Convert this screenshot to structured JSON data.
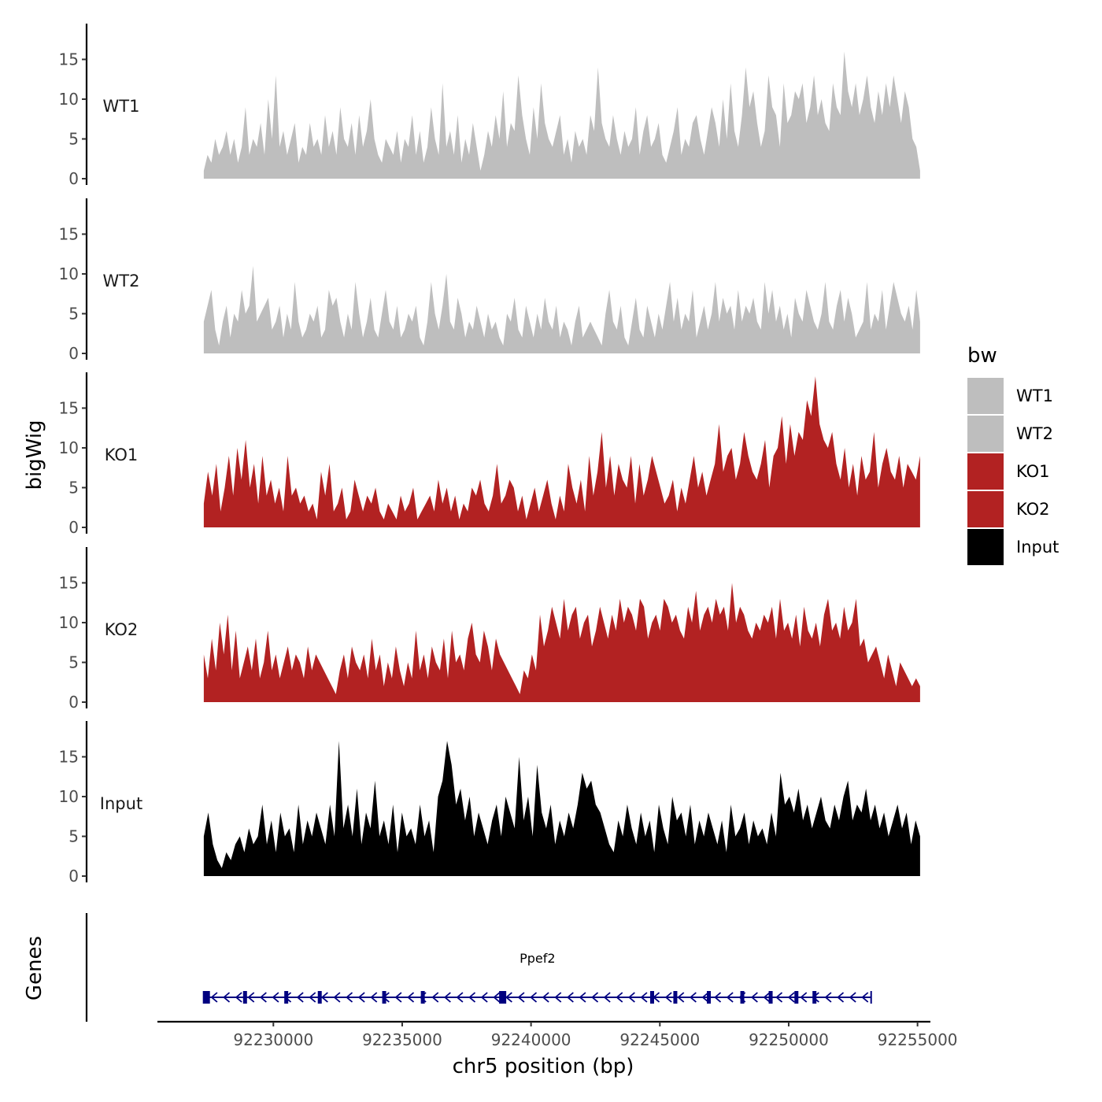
{
  "chart_data": {
    "type": "area",
    "xlabel": "chr5 position (bp)",
    "ylabel": "bigWig",
    "genes_label": "Genes",
    "xlim": [
      92225500,
      92255500
    ],
    "x_ticks": [
      92230000,
      92235000,
      92240000,
      92245000,
      92250000,
      92255000
    ],
    "x_tick_labels": [
      "92230000",
      "92235000",
      "92240000",
      "92245000",
      "92250000",
      "92255000"
    ],
    "ylim": [
      0,
      19.5
    ],
    "y_ticks": [
      0,
      5,
      10,
      15
    ],
    "y_tick_labels": [
      "0",
      "5",
      "10",
      "15"
    ],
    "series_x_start": 92227300,
    "series_x_end": 92255100,
    "legend": {
      "title": "bw",
      "entries": [
        {
          "label": "WT1",
          "color": "#bebebe"
        },
        {
          "label": "WT2",
          "color": "#bebebe"
        },
        {
          "label": "KO1",
          "color": "#b22222"
        },
        {
          "label": "KO2",
          "color": "#b22222"
        },
        {
          "label": "Input",
          "color": "#000000"
        }
      ]
    },
    "tracks": [
      {
        "name": "WT1",
        "color": "#bebebe",
        "values": [
          1,
          3,
          2,
          5,
          3,
          4,
          6,
          3,
          5,
          2,
          4,
          9,
          3,
          5,
          4,
          7,
          3,
          10,
          5,
          13,
          4,
          6,
          3,
          5,
          7,
          2,
          4,
          3,
          7,
          4,
          5,
          3,
          8,
          4,
          6,
          3,
          9,
          5,
          4,
          7,
          3,
          8,
          4,
          6,
          10,
          5,
          3,
          2,
          5,
          4,
          3,
          6,
          2,
          5,
          4,
          8,
          3,
          6,
          2,
          4,
          9,
          5,
          3,
          12,
          4,
          6,
          3,
          8,
          2,
          5,
          3,
          7,
          4,
          1,
          3,
          6,
          4,
          8,
          5,
          11,
          4,
          7,
          6,
          13,
          8,
          5,
          3,
          9,
          5,
          12,
          7,
          5,
          4,
          6,
          8,
          3,
          5,
          2,
          6,
          4,
          5,
          3,
          8,
          6,
          14,
          7,
          5,
          4,
          8,
          5,
          3,
          6,
          4,
          5,
          9,
          3,
          6,
          8,
          4,
          5,
          7,
          3,
          2,
          4,
          6,
          9,
          3,
          5,
          4,
          7,
          8,
          5,
          3,
          6,
          9,
          7,
          4,
          10,
          5,
          12,
          6,
          4,
          8,
          14,
          9,
          11,
          7,
          4,
          6,
          13,
          9,
          8,
          4,
          12,
          7,
          8,
          11,
          10,
          12,
          7,
          9,
          13,
          8,
          10,
          7,
          6,
          12,
          9,
          8,
          16,
          11,
          9,
          12,
          8,
          10,
          13,
          9,
          7,
          11,
          8,
          12,
          9,
          13,
          10,
          7,
          11,
          9,
          5,
          4,
          1
        ]
      },
      {
        "name": "WT2",
        "color": "#bebebe",
        "values": [
          4,
          6,
          8,
          3,
          1,
          4,
          6,
          2,
          5,
          4,
          8,
          5,
          6,
          11,
          4,
          5,
          6,
          7,
          3,
          4,
          6,
          2,
          5,
          3,
          9,
          4,
          2,
          3,
          5,
          4,
          6,
          2,
          3,
          8,
          6,
          7,
          4,
          2,
          5,
          3,
          9,
          5,
          2,
          4,
          7,
          3,
          2,
          5,
          8,
          4,
          3,
          6,
          2,
          3,
          5,
          4,
          6,
          2,
          1,
          4,
          9,
          5,
          3,
          6,
          10,
          4,
          3,
          7,
          5,
          2,
          4,
          3,
          6,
          4,
          2,
          5,
          3,
          4,
          2,
          1,
          5,
          4,
          7,
          3,
          2,
          6,
          4,
          2,
          5,
          3,
          7,
          4,
          3,
          6,
          2,
          4,
          3,
          1,
          4,
          6,
          2,
          3,
          4,
          3,
          2,
          1,
          5,
          8,
          4,
          3,
          6,
          2,
          1,
          4,
          7,
          3,
          2,
          6,
          4,
          2,
          5,
          3,
          6,
          9,
          4,
          7,
          3,
          5,
          4,
          8,
          2,
          4,
          6,
          3,
          5,
          9,
          4,
          7,
          5,
          6,
          3,
          8,
          4,
          6,
          5,
          7,
          4,
          3,
          9,
          5,
          8,
          4,
          6,
          3,
          5,
          2,
          7,
          5,
          4,
          8,
          6,
          4,
          3,
          5,
          9,
          4,
          3,
          6,
          8,
          4,
          7,
          5,
          2,
          3,
          4,
          9,
          3,
          5,
          4,
          8,
          3,
          6,
          9,
          7,
          5,
          4,
          6,
          3,
          8,
          4
        ]
      },
      {
        "name": "KO1",
        "color": "#b22222",
        "values": [
          3,
          7,
          4,
          8,
          2,
          5,
          9,
          4,
          10,
          6,
          11,
          5,
          8,
          3,
          9,
          4,
          6,
          3,
          5,
          2,
          9,
          4,
          5,
          3,
          4,
          2,
          3,
          1,
          7,
          4,
          8,
          2,
          3,
          5,
          1,
          2,
          6,
          4,
          2,
          4,
          3,
          5,
          2,
          1,
          3,
          2,
          1,
          4,
          2,
          3,
          5,
          1,
          2,
          3,
          4,
          2,
          6,
          3,
          5,
          2,
          4,
          1,
          3,
          2,
          5,
          4,
          6,
          3,
          2,
          4,
          8,
          3,
          4,
          6,
          5,
          2,
          4,
          1,
          3,
          5,
          2,
          4,
          6,
          3,
          1,
          4,
          2,
          8,
          5,
          3,
          6,
          2,
          9,
          4,
          7,
          12,
          5,
          9,
          4,
          8,
          6,
          5,
          9,
          3,
          8,
          4,
          6,
          9,
          7,
          5,
          3,
          4,
          6,
          2,
          5,
          3,
          6,
          9,
          5,
          7,
          4,
          6,
          8,
          13,
          7,
          9,
          10,
          6,
          8,
          12,
          9,
          7,
          6,
          8,
          11,
          5,
          9,
          10,
          14,
          8,
          13,
          9,
          12,
          11,
          16,
          14,
          19,
          13,
          11,
          10,
          12,
          8,
          6,
          10,
          5,
          8,
          4,
          9,
          6,
          7,
          12,
          5,
          8,
          10,
          7,
          6,
          9,
          5,
          8,
          7,
          6,
          9
        ]
      },
      {
        "name": "KO2",
        "color": "#b22222",
        "values": [
          6,
          3,
          8,
          4,
          10,
          6,
          11,
          4,
          9,
          3,
          5,
          7,
          4,
          8,
          3,
          5,
          9,
          4,
          6,
          3,
          5,
          7,
          4,
          6,
          5,
          3,
          7,
          4,
          6,
          5,
          4,
          3,
          2,
          1,
          4,
          6,
          3,
          7,
          5,
          4,
          6,
          3,
          8,
          4,
          6,
          2,
          5,
          3,
          7,
          4,
          2,
          5,
          3,
          9,
          4,
          6,
          3,
          7,
          5,
          4,
          8,
          3,
          9,
          5,
          6,
          4,
          8,
          10,
          6,
          5,
          9,
          7,
          4,
          8,
          6,
          5,
          4,
          3,
          2,
          1,
          4,
          3,
          6,
          4,
          11,
          7,
          9,
          12,
          10,
          8,
          13,
          9,
          11,
          12,
          8,
          10,
          11,
          7,
          9,
          12,
          10,
          8,
          11,
          9,
          13,
          10,
          12,
          11,
          9,
          13,
          12,
          8,
          10,
          11,
          9,
          13,
          12,
          10,
          11,
          9,
          8,
          12,
          10,
          14,
          9,
          11,
          12,
          10,
          13,
          11,
          12,
          9,
          15,
          10,
          12,
          11,
          9,
          8,
          10,
          9,
          11,
          10,
          12,
          8,
          13,
          9,
          10,
          8,
          11,
          7,
          12,
          9,
          8,
          10,
          7,
          11,
          13,
          9,
          10,
          8,
          12,
          9,
          10,
          13,
          7,
          8,
          5,
          6,
          7,
          5,
          3,
          6,
          4,
          2,
          5,
          4,
          3,
          2,
          3,
          2
        ]
      },
      {
        "name": "Input",
        "color": "#000000",
        "values": [
          5,
          8,
          4,
          2,
          1,
          3,
          2,
          4,
          5,
          3,
          6,
          4,
          5,
          9,
          4,
          7,
          3,
          8,
          5,
          6,
          3,
          9,
          4,
          7,
          5,
          8,
          6,
          4,
          9,
          5,
          17,
          6,
          9,
          5,
          11,
          4,
          8,
          6,
          12,
          5,
          7,
          4,
          9,
          3,
          8,
          5,
          6,
          4,
          9,
          5,
          7,
          3,
          10,
          12,
          17,
          14,
          9,
          11,
          7,
          10,
          5,
          8,
          6,
          4,
          7,
          9,
          5,
          10,
          8,
          6,
          15,
          7,
          10,
          5,
          14,
          8,
          6,
          9,
          4,
          7,
          5,
          8,
          6,
          9,
          13,
          11,
          12,
          9,
          8,
          6,
          4,
          3,
          7,
          5,
          9,
          6,
          4,
          8,
          5,
          7,
          3,
          9,
          6,
          4,
          10,
          7,
          8,
          5,
          9,
          4,
          7,
          5,
          8,
          6,
          4,
          7,
          3,
          9,
          5,
          6,
          8,
          4,
          7,
          5,
          6,
          4,
          8,
          5,
          13,
          9,
          10,
          8,
          11,
          7,
          9,
          6,
          8,
          10,
          7,
          6,
          9,
          7,
          10,
          12,
          7,
          9,
          8,
          11,
          7,
          9,
          6,
          8,
          5,
          7,
          9,
          6,
          8,
          4,
          7,
          5
        ]
      }
    ],
    "gene": {
      "name": "Ppef2",
      "strand": "-",
      "color": "#000080",
      "start": 92227300,
      "end": 92253200,
      "exons": [
        92227400,
        92228900,
        92230500,
        92231800,
        92234300,
        92235800,
        92238900,
        92244700,
        92245600,
        92246900,
        92248200,
        92249300,
        92250300,
        92251000
      ]
    }
  }
}
